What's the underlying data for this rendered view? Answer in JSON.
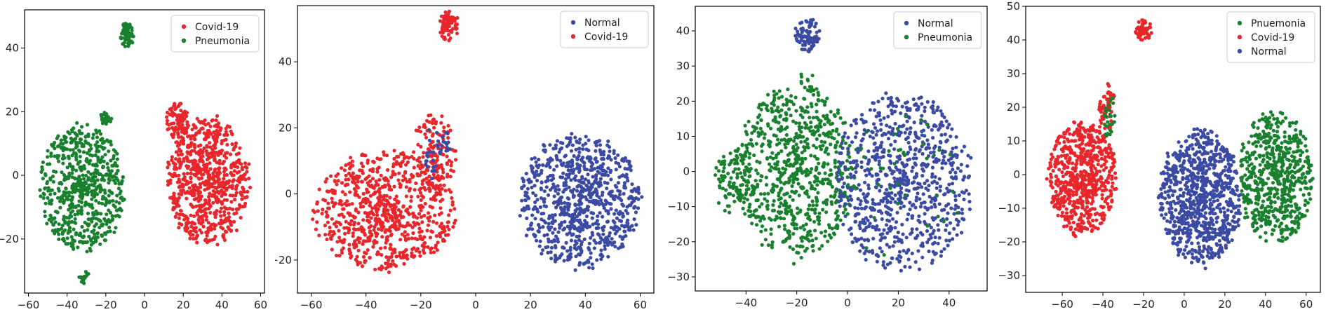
{
  "colors": {
    "red": "#e8262b",
    "green": "#19812e",
    "blue": "#3b4ba3",
    "axis": "#000000"
  },
  "chart_data": [
    {
      "type": "scatter",
      "title": "",
      "xlabel": "",
      "ylabel": "",
      "xlim": [
        -62,
        62
      ],
      "ylim": [
        -37,
        52
      ],
      "xticks": [
        -60,
        -40,
        -20,
        0,
        20,
        40,
        60
      ],
      "yticks": [
        -20,
        0,
        20,
        40
      ],
      "legend_position": "top-right",
      "legend": [
        {
          "name": "Covid-19",
          "color": "red"
        },
        {
          "name": "Pneumonia",
          "color": "green"
        }
      ],
      "clusters": [
        {
          "series": "Pneumonia",
          "color": "green",
          "cx": -9,
          "cy": 44,
          "rx": 3.5,
          "ry": 4,
          "n": 60
        },
        {
          "series": "Pneumonia",
          "color": "green",
          "cx": -20,
          "cy": 18,
          "rx": 3,
          "ry": 2.5,
          "n": 25
        },
        {
          "series": "Pneumonia",
          "color": "green",
          "cx": -32,
          "cy": -4,
          "rx": 22,
          "ry": 20,
          "n": 650
        },
        {
          "series": "Pneumonia",
          "color": "green",
          "cx": -31,
          "cy": -32,
          "rx": 3,
          "ry": 2,
          "n": 14
        },
        {
          "series": "Covid-19",
          "color": "red",
          "cx": 17,
          "cy": 17,
          "rx": 6,
          "ry": 6,
          "n": 80
        },
        {
          "series": "Covid-19",
          "color": "red",
          "cx": 33,
          "cy": -2,
          "rx": 21,
          "ry": 20,
          "n": 720
        }
      ]
    },
    {
      "type": "scatter",
      "title": "",
      "xlabel": "",
      "ylabel": "",
      "xlim": [
        -65,
        65
      ],
      "ylim": [
        -30,
        57
      ],
      "xticks": [
        -60,
        -40,
        -20,
        0,
        20,
        40,
        60
      ],
      "yticks": [
        -20,
        0,
        20,
        40
      ],
      "legend_position": "top-right",
      "legend": [
        {
          "name": "Normal",
          "color": "blue"
        },
        {
          "name": "Covid-19",
          "color": "red"
        }
      ],
      "clusters": [
        {
          "series": "Covid-19",
          "color": "red",
          "cx": -10,
          "cy": 51,
          "rx": 4,
          "ry": 4.5,
          "n": 70
        },
        {
          "series": "Covid-19",
          "color": "red",
          "cx": -33,
          "cy": -5,
          "rx": 26,
          "ry": 18,
          "n": 750
        },
        {
          "series": "Covid-19",
          "color": "red",
          "cx": -15,
          "cy": 12,
          "rx": 8,
          "ry": 12,
          "n": 120
        },
        {
          "series": "Normal",
          "color": "blue",
          "cx": -14,
          "cy": 13,
          "rx": 5,
          "ry": 9,
          "n": 40
        },
        {
          "series": "Normal",
          "color": "blue",
          "cx": 38,
          "cy": -2,
          "rx": 22,
          "ry": 20,
          "n": 800
        }
      ]
    },
    {
      "type": "scatter",
      "title": "",
      "xlabel": "",
      "ylabel": "",
      "xlim": [
        -60,
        55
      ],
      "ylim": [
        -34,
        47
      ],
      "xticks": [
        -40,
        -20,
        0,
        20,
        40
      ],
      "yticks": [
        -30,
        -20,
        -10,
        0,
        10,
        20,
        30,
        40
      ],
      "legend_position": "top-right",
      "legend": [
        {
          "name": "Normal",
          "color": "blue"
        },
        {
          "name": "Pneumonia",
          "color": "green"
        }
      ],
      "clusters": [
        {
          "series": "Normal",
          "color": "blue",
          "cx": -16,
          "cy": 39,
          "rx": 5,
          "ry": 5,
          "n": 80
        },
        {
          "series": "Pneumonia",
          "color": "green",
          "cx": -16,
          "cy": 26,
          "rx": 3,
          "ry": 4,
          "n": 12
        },
        {
          "series": "Pneumonia",
          "color": "green",
          "cx": -20,
          "cy": 0,
          "rx": 23,
          "ry": 25,
          "n": 750
        },
        {
          "series": "Pneumonia",
          "color": "green",
          "cx": -45,
          "cy": -3,
          "rx": 8,
          "ry": 9,
          "n": 90
        },
        {
          "series": "Normal",
          "color": "blue",
          "cx": 22,
          "cy": -3,
          "rx": 27,
          "ry": 25,
          "n": 800
        },
        {
          "series": "Pneumonia",
          "color": "green",
          "cx": 20,
          "cy": -5,
          "rx": 25,
          "ry": 22,
          "n": 40
        }
      ]
    },
    {
      "type": "scatter",
      "title": "",
      "xlabel": "",
      "ylabel": "",
      "xlim": [
        -78,
        67
      ],
      "ylim": [
        -35,
        50
      ],
      "xticks": [
        -60,
        -40,
        -20,
        0,
        20,
        40,
        60
      ],
      "yticks": [
        -30,
        -20,
        -10,
        0,
        10,
        20,
        30,
        40,
        50
      ],
      "legend_position": "top-right",
      "legend": [
        {
          "name": "Pnuemonia",
          "color": "green"
        },
        {
          "name": "Covid-19",
          "color": "red"
        },
        {
          "name": "Normal",
          "color": "blue"
        }
      ],
      "clusters": [
        {
          "series": "Covid-19",
          "color": "red",
          "cx": -20,
          "cy": 43,
          "rx": 4,
          "ry": 3.5,
          "n": 60
        },
        {
          "series": "Covid-19",
          "color": "red",
          "cx": -50,
          "cy": -1,
          "rx": 17,
          "ry": 17,
          "n": 650
        },
        {
          "series": "Covid-19",
          "color": "red",
          "cx": -38,
          "cy": 20,
          "rx": 4,
          "ry": 7,
          "n": 60
        },
        {
          "series": "Pnuemonia",
          "color": "green",
          "cx": -37,
          "cy": 17,
          "rx": 3,
          "ry": 8,
          "n": 25
        },
        {
          "series": "Normal",
          "color": "blue",
          "cx": 8,
          "cy": -7,
          "rx": 20,
          "ry": 20,
          "n": 850
        },
        {
          "series": "Pnuemonia",
          "color": "green",
          "cx": 45,
          "cy": -1,
          "rx": 18,
          "ry": 20,
          "n": 600
        }
      ]
    }
  ]
}
